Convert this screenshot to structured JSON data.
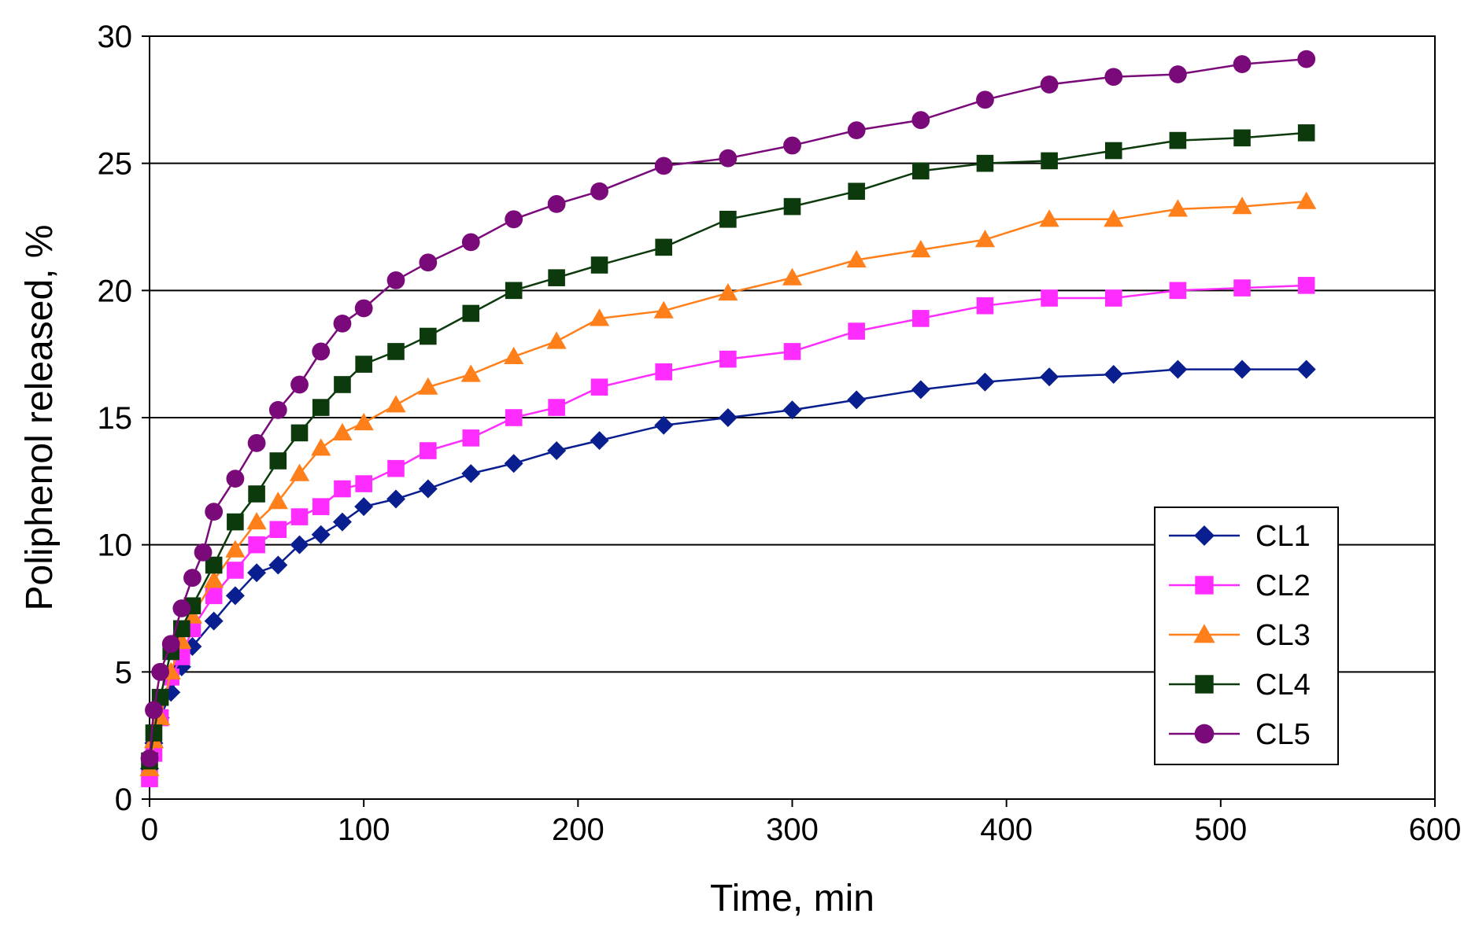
{
  "chart_data": {
    "type": "line",
    "title": "",
    "xlabel": "Time, min",
    "ylabel": "Poliphenol released, %",
    "xlim": [
      0,
      600
    ],
    "ylim": [
      0,
      30
    ],
    "xticks": [
      0,
      100,
      200,
      300,
      400,
      500,
      600
    ],
    "yticks": [
      0,
      5,
      10,
      15,
      20,
      25,
      30
    ],
    "grid": "horizontal",
    "legend_position": "right",
    "series": [
      {
        "name": "CL1",
        "color": "#0a1f8f",
        "marker": "diamond",
        "x": [
          0,
          2,
          5,
          10,
          15,
          20,
          30,
          40,
          50,
          60,
          70,
          80,
          90,
          100,
          115,
          130,
          150,
          170,
          190,
          210,
          240,
          270,
          300,
          330,
          360,
          390,
          420,
          450,
          480,
          510,
          540
        ],
        "y": [
          1.2,
          2.2,
          3.2,
          4.2,
          5.2,
          6.0,
          7.0,
          8.0,
          8.9,
          9.2,
          10.0,
          10.4,
          10.9,
          11.5,
          11.8,
          12.2,
          12.8,
          13.2,
          13.7,
          14.1,
          14.7,
          15.0,
          15.3,
          15.7,
          16.1,
          16.4,
          16.6,
          16.7,
          16.9,
          16.9,
          16.9
        ]
      },
      {
        "name": "CL2",
        "color": "#ff2cff",
        "marker": "square",
        "x": [
          0,
          2,
          5,
          10,
          15,
          20,
          30,
          40,
          50,
          60,
          70,
          80,
          90,
          100,
          115,
          130,
          150,
          170,
          190,
          210,
          240,
          270,
          300,
          330,
          360,
          390,
          420,
          450,
          480,
          510,
          540
        ],
        "y": [
          0.8,
          1.8,
          3.2,
          4.8,
          5.6,
          6.7,
          8.0,
          9.0,
          10.0,
          10.6,
          11.1,
          11.5,
          12.2,
          12.4,
          13.0,
          13.7,
          14.2,
          15.0,
          15.4,
          16.2,
          16.8,
          17.3,
          17.6,
          18.4,
          18.9,
          19.4,
          19.7,
          19.7,
          20.0,
          20.1,
          20.2
        ]
      },
      {
        "name": "CL3",
        "color": "#ff7f1a",
        "marker": "triangle",
        "x": [
          0,
          2,
          5,
          10,
          15,
          20,
          30,
          40,
          50,
          60,
          70,
          80,
          90,
          100,
          115,
          130,
          150,
          170,
          190,
          210,
          240,
          270,
          300,
          330,
          360,
          390,
          420,
          450,
          480,
          510,
          540
        ],
        "y": [
          1.2,
          2.3,
          3.2,
          5.0,
          6.2,
          7.2,
          8.6,
          9.8,
          10.9,
          11.7,
          12.8,
          13.8,
          14.4,
          14.8,
          15.5,
          16.2,
          16.7,
          17.4,
          18.0,
          18.9,
          19.2,
          19.9,
          20.5,
          21.2,
          21.6,
          22.0,
          22.8,
          22.8,
          23.2,
          23.3,
          23.5
        ]
      },
      {
        "name": "CL4",
        "color": "#0c3a0c",
        "marker": "square",
        "x": [
          0,
          2,
          5,
          10,
          15,
          20,
          30,
          40,
          50,
          60,
          70,
          80,
          90,
          100,
          115,
          130,
          150,
          170,
          190,
          210,
          240,
          270,
          300,
          330,
          360,
          390,
          420,
          450,
          480,
          510,
          540
        ],
        "y": [
          1.5,
          2.6,
          4.0,
          5.8,
          6.7,
          7.6,
          9.2,
          10.9,
          12.0,
          13.3,
          14.4,
          15.4,
          16.3,
          17.1,
          17.6,
          18.2,
          19.1,
          20.0,
          20.5,
          21.0,
          21.7,
          22.8,
          23.3,
          23.9,
          24.7,
          25.0,
          25.1,
          25.5,
          25.9,
          26.0,
          26.2
        ]
      },
      {
        "name": "CL5",
        "color": "#7a0a7a",
        "marker": "circle",
        "x": [
          0,
          2,
          5,
          10,
          15,
          20,
          25,
          30,
          40,
          50,
          60,
          70,
          80,
          90,
          100,
          115,
          130,
          150,
          170,
          190,
          210,
          240,
          270,
          300,
          330,
          360,
          390,
          420,
          450,
          480,
          510,
          540
        ],
        "y": [
          1.6,
          3.5,
          5.0,
          6.1,
          7.5,
          8.7,
          9.7,
          11.3,
          12.6,
          14.0,
          15.3,
          16.3,
          17.6,
          18.7,
          19.3,
          20.4,
          21.1,
          21.9,
          22.8,
          23.4,
          23.9,
          24.9,
          25.2,
          25.7,
          26.3,
          26.7,
          27.5,
          28.1,
          28.4,
          28.5,
          28.9,
          29.1
        ]
      }
    ]
  }
}
